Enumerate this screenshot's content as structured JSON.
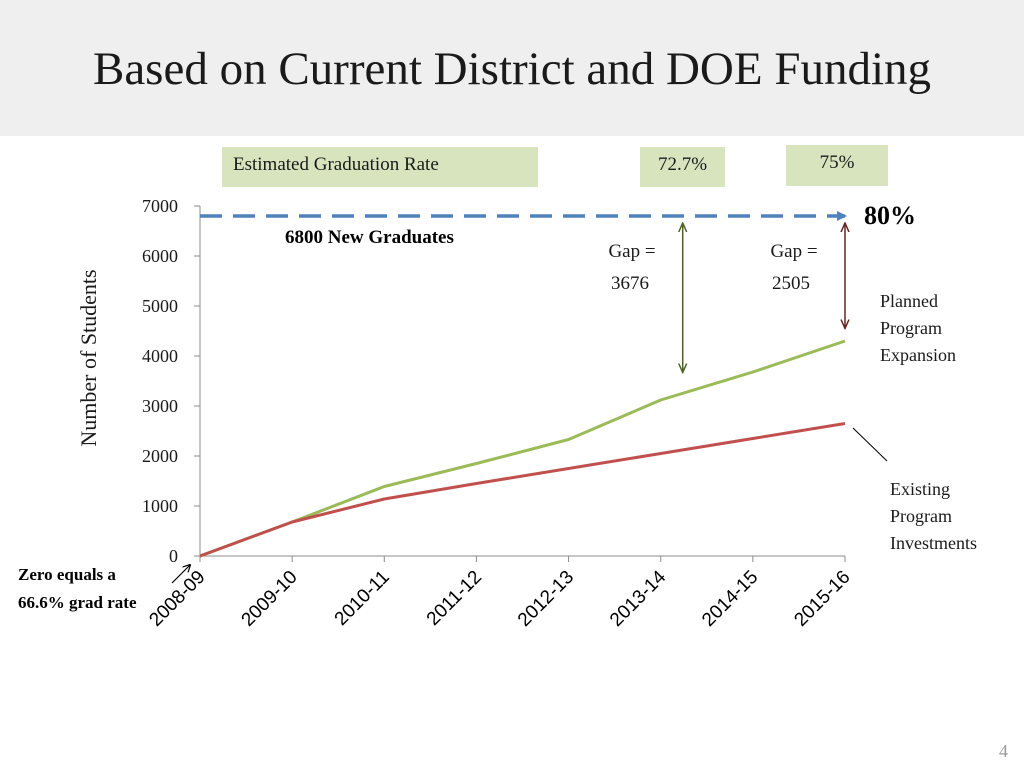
{
  "title": "Based on Current District and DOE Funding",
  "page_number": "4",
  "rate_boxes": {
    "label": "Estimated Graduation Rate",
    "rate_2013": "72.7%",
    "rate_2015": "75%"
  },
  "annotations": {
    "target_rate": "80%",
    "target_label": "6800 New Graduates",
    "gap1_line1": "Gap =",
    "gap1_line2": "3676",
    "gap2_line1": "Gap =",
    "gap2_line2": "2505",
    "planned_line1": "Planned",
    "planned_line2": "Program",
    "planned_line3": "Expansion",
    "existing_line1": "Existing",
    "existing_line2": "Program",
    "existing_line3": "Investments",
    "zero_line1": "Zero equals a",
    "zero_line2": "66.6% grad rate"
  },
  "colors": {
    "planned": "#9bbb59",
    "existing": "#c0504d",
    "target": "#4f81bd",
    "gap1_arrow": "#4f6228",
    "gap2_arrow": "#632523",
    "header_band": "#efefef",
    "rate_box": "#d7e4bd"
  },
  "chart_data": {
    "type": "line",
    "ylabel": "Number of Students",
    "xlabel": "",
    "ylim": [
      0,
      7000
    ],
    "yticks": [
      "0",
      "1000",
      "2000",
      "3000",
      "4000",
      "5000",
      "6000",
      "7000"
    ],
    "categories": [
      "2008-09",
      "2009-10",
      "2010-11",
      "2011-12",
      "2012-13",
      "2013-14",
      "2014-15",
      "2015-16"
    ],
    "series": [
      {
        "name": "Planned Program Expansion",
        "values": [
          0,
          680,
          1390,
          1850,
          2330,
          3120,
          3680,
          4300
        ]
      },
      {
        "name": "Existing Program Investments",
        "values": [
          0,
          680,
          1140,
          1450,
          1750,
          2050,
          2350,
          2650
        ]
      }
    ],
    "target_value": 6800
  }
}
